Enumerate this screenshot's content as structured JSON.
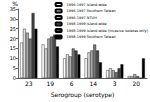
{
  "chart_data": {
    "type": "bar",
    "x_label": "Serogroup (serotype)",
    "y_label": "%",
    "categories": [
      "23",
      "19",
      "6",
      "14",
      "3",
      "20"
    ],
    "series": [
      {
        "name": "1996-1997 Island-wide",
        "color": "#ffffff",
        "values": [
          18,
          17,
          10,
          10,
          4,
          1
        ]
      },
      {
        "name": "1996-1997 Southern Taiwan",
        "color": "#dddddd",
        "values": [
          25,
          15,
          12,
          13,
          5,
          1
        ]
      },
      {
        "name": "1996-1997 NTUH",
        "color": "#aaaaaa",
        "values": [
          23,
          20,
          11,
          14,
          4,
          2
        ]
      },
      {
        "name": "1998-1999 Island-wide",
        "color": "#777777",
        "values": [
          20,
          21,
          15,
          17,
          3,
          1
        ]
      },
      {
        "name": "1998-1999 Island-wide (invasive isolates only)",
        "color": "#444444",
        "values": [
          33,
          22,
          14,
          14,
          5,
          0
        ]
      },
      {
        "name": "1998-1999 Southern Taiwan",
        "color": "#000000",
        "values": [
          25,
          16,
          12,
          8,
          7,
          10
        ]
      }
    ],
    "ylim": [
      0,
      35
    ],
    "yticks": [
      0,
      5,
      10,
      15,
      20,
      25,
      30,
      35
    ],
    "legend": "upper right",
    "grid": false
  }
}
